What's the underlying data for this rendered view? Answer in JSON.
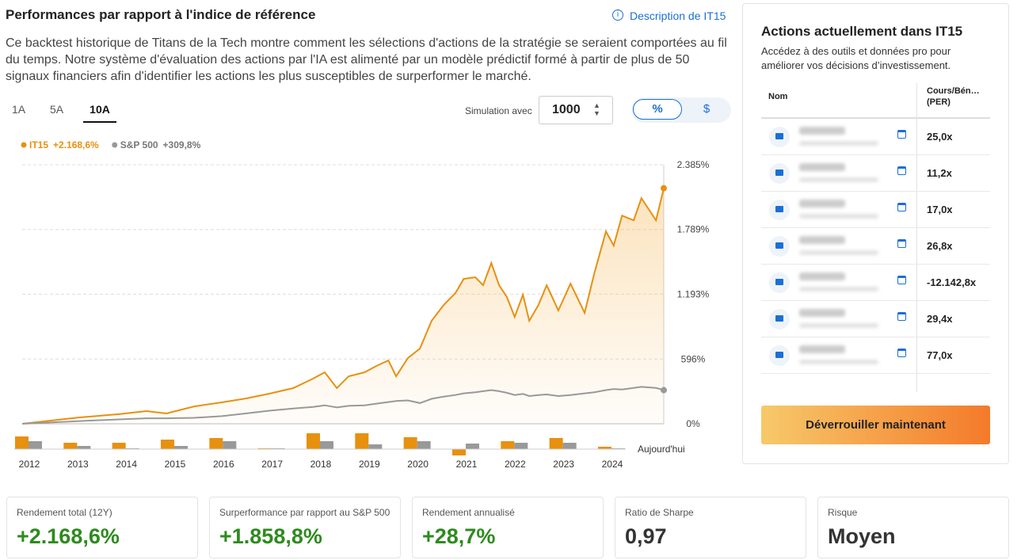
{
  "header": {
    "title": "Performances par rapport à l'indice de référence",
    "link": "Description de IT15"
  },
  "description": "Ce backtest historique de Titans de la Tech montre comment les sélections d'actions de la stratégie se seraient comportées au fil du temps. Notre système d'évaluation des actions par l'IA est alimenté par un modèle prédictif formé à partir de plus de 50 signaux financiers afin d'identifier les actions les plus susceptibles de surperformer le marché.",
  "tabs": [
    "1A",
    "5A",
    "10A"
  ],
  "simulation": {
    "label": "Simulation avec",
    "amount": 1000,
    "toggle": [
      "%",
      "$"
    ]
  },
  "chart_data": [
    {
      "type": "line",
      "end_label": "Aujourd'hui",
      "x": [
        2011.85,
        2013.03,
        2013.84,
        2014.41,
        2014.82,
        2015.39,
        2015.96,
        2016.45,
        2016.94,
        2017.43,
        2017.84,
        2018.08,
        2018.33,
        2018.57,
        2018.9,
        2019.14,
        2019.39,
        2019.55,
        2019.79,
        2020.04,
        2020.28,
        2020.53,
        2020.77,
        2020.94,
        2021.18,
        2021.34,
        2021.51,
        2021.67,
        2021.83,
        2021.99,
        2022.16,
        2022.29,
        2022.48,
        2022.65,
        2022.89,
        2023.14,
        2023.43,
        2023.63,
        2023.87,
        2024.03,
        2024.2,
        2024.44,
        2024.6,
        2024.9,
        2025.06
      ],
      "xlim": [
        2011.85,
        2025.06
      ],
      "series": [
        {
          "name": "IT15",
          "legend_value": "+2.168,6%",
          "color": "#e8900f",
          "values": [
            0,
            58,
            88,
            117,
            95,
            160,
            197,
            233,
            277,
            328,
            416,
            474,
            328,
            437,
            474,
            532,
            583,
            437,
            605,
            693,
            948,
            1094,
            1203,
            1334,
            1349,
            1276,
            1480,
            1276,
            1167,
            984,
            1188,
            948,
            1094,
            1276,
            1043,
            1290,
            1021,
            1385,
            1771,
            1640,
            1917,
            1873,
            2077,
            1873,
            2168.6
          ]
        },
        {
          "name": "S&P 500",
          "legend_value": "+309,8%",
          "color": "#999999",
          "values": [
            0,
            25,
            40,
            50,
            50,
            55,
            70,
            95,
            120,
            140,
            155,
            170,
            150,
            165,
            170,
            185,
            200,
            210,
            215,
            190,
            230,
            250,
            265,
            280,
            290,
            300,
            310,
            300,
            285,
            265,
            275,
            255,
            265,
            270,
            255,
            265,
            280,
            290,
            310,
            320,
            315,
            330,
            340,
            330,
            309.8
          ]
        }
      ],
      "ylim": [
        0,
        2385
      ],
      "yticks": [
        {
          "value": 0,
          "label": "0%"
        },
        {
          "value": 596,
          "label": "596%"
        },
        {
          "value": 1193,
          "label": "1.193%"
        },
        {
          "value": 1789,
          "label": "1.789%"
        },
        {
          "value": 2385,
          "label": "2.385%"
        }
      ],
      "grid": true
    },
    {
      "type": "bar",
      "categories": [
        "2012",
        "2013",
        "2014",
        "2015",
        "2016",
        "2017",
        "2018",
        "2019",
        "2020",
        "2021",
        "2022",
        "2023",
        "2024"
      ],
      "series": [
        {
          "name": "IT15",
          "color": "#e8900f",
          "values": [
            80,
            40,
            40,
            60,
            70,
            5,
            100,
            100,
            75,
            -40,
            50,
            70,
            15
          ]
        },
        {
          "name": "S&P 500",
          "color": "#999999",
          "values": [
            50,
            20,
            5,
            20,
            50,
            5,
            50,
            30,
            50,
            35,
            40,
            40,
            5
          ]
        }
      ]
    }
  ],
  "holdings": {
    "title": "Actions actuellement dans IT15",
    "subtitle": "Accédez à des outils et données pro pour améliorer vos décisions d’investissement.",
    "col_name": "Nom",
    "col_per": "Cours/Bén…",
    "col_per_sub": "(PER)",
    "per": [
      "25,0x",
      "11,2x",
      "17,0x",
      "26,8x",
      "-12.142,8x",
      "29,4x",
      "77,0x"
    ],
    "button": "Déverrouiller maintenant"
  },
  "stats": [
    {
      "label": "Rendement total (12Y)",
      "value": "+2.168,6%"
    },
    {
      "label": "Surperformance par rapport au S&P 500",
      "value": "+1.858,8%"
    },
    {
      "label": "Rendement annualisé",
      "value": "+28,7%"
    },
    {
      "label": "Ratio de Sharpe",
      "value": "0,97"
    },
    {
      "label": "Risque",
      "value": "Moyen"
    }
  ]
}
